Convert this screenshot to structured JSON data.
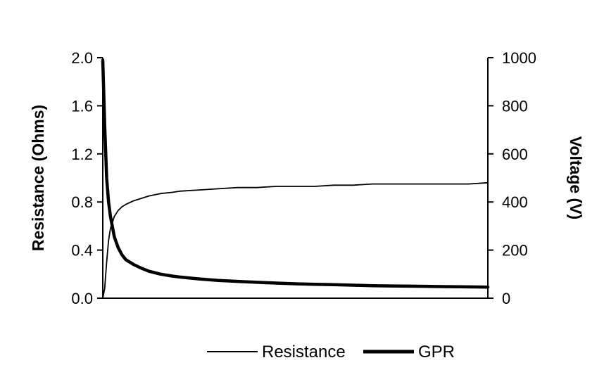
{
  "chart_data": {
    "type": "line",
    "title": "",
    "xlabel": "",
    "ylabel": "Resistance (Ohms)",
    "y2label": "Voltage (V)",
    "ylim": [
      0,
      2.0
    ],
    "y2lim": [
      0,
      1000
    ],
    "yticks": [
      "0.0",
      "0.4",
      "0.8",
      "1.2",
      "1.6",
      "2.0"
    ],
    "y2ticks": [
      "0",
      "200",
      "400",
      "600",
      "800",
      "1000"
    ],
    "xlim": [
      0,
      100
    ],
    "grid": false,
    "legend_position": "bottom",
    "x": [
      0,
      0.5,
      1,
      1.5,
      2,
      3,
      4,
      5,
      6,
      8,
      10,
      12,
      15,
      18,
      20,
      25,
      30,
      35,
      40,
      45,
      50,
      55,
      60,
      65,
      70,
      75,
      80,
      85,
      90,
      95,
      100
    ],
    "series": [
      {
        "name": "Resistance",
        "axis": "left",
        "line_width": 1.8,
        "values": [
          0.0,
          0.08,
          0.3,
          0.48,
          0.58,
          0.68,
          0.73,
          0.76,
          0.78,
          0.81,
          0.83,
          0.85,
          0.87,
          0.88,
          0.89,
          0.9,
          0.91,
          0.92,
          0.92,
          0.93,
          0.93,
          0.93,
          0.94,
          0.94,
          0.95,
          0.95,
          0.95,
          0.95,
          0.95,
          0.95,
          0.96
        ]
      },
      {
        "name": "GPR",
        "axis": "right",
        "line_width": 4.5,
        "values": [
          990,
          720,
          500,
          400,
          340,
          255,
          210,
          180,
          160,
          140,
          125,
          112,
          100,
          92,
          88,
          80,
          74,
          70,
          66,
          63,
          60,
          58,
          56,
          54,
          52,
          51,
          50,
          49,
          48,
          47,
          46
        ]
      }
    ]
  }
}
